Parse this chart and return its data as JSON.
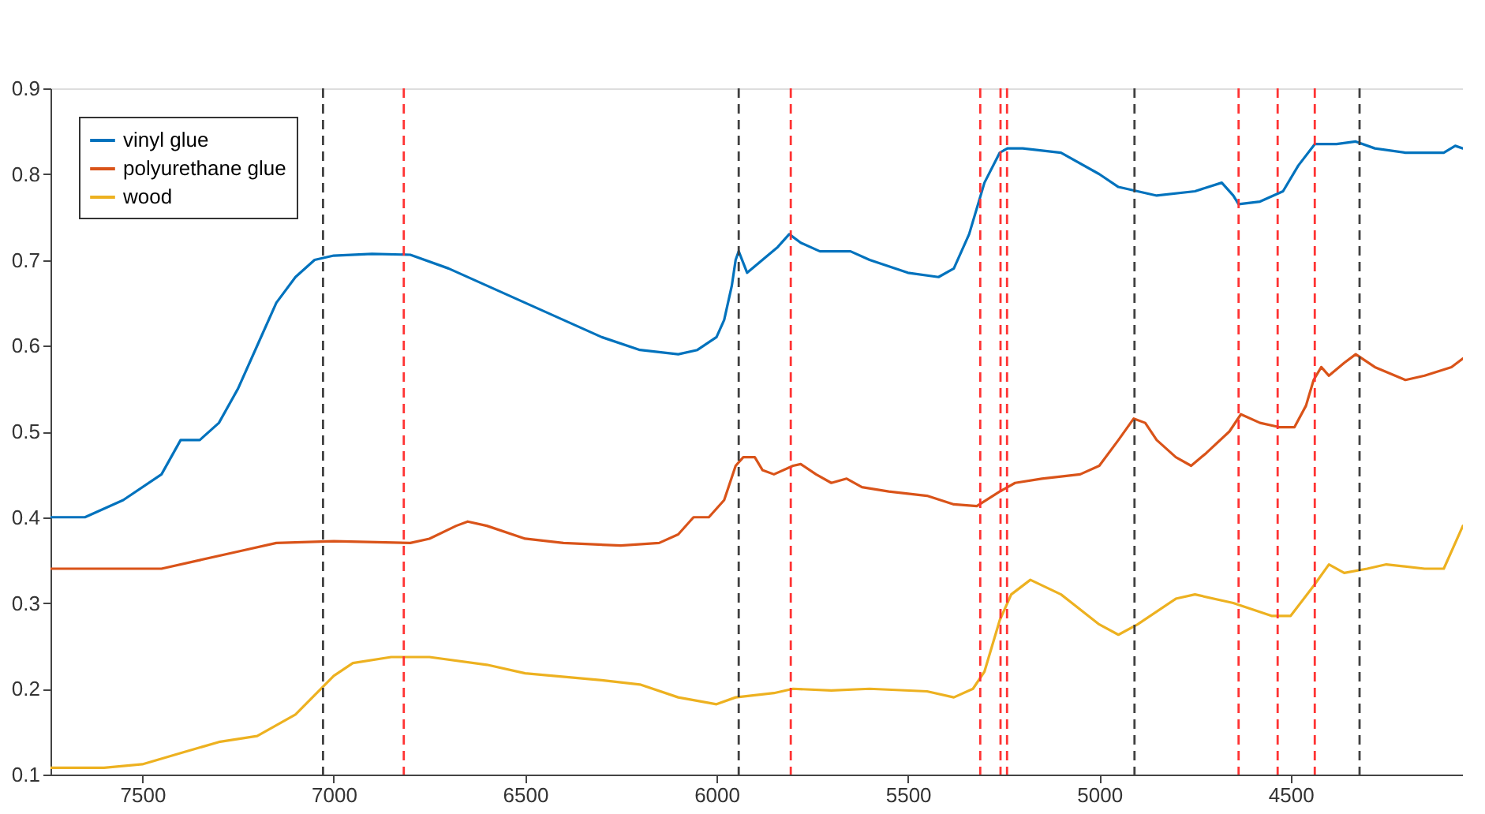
{
  "chart_data": {
    "type": "line",
    "xlim": [
      7740,
      4050
    ],
    "xticks": [
      7500,
      7000,
      6500,
      6000,
      5500,
      5000,
      4500
    ],
    "ylim": [
      0.1,
      0.9
    ],
    "yticks": [
      0.1,
      0.2,
      0.3,
      0.4,
      0.5,
      0.6,
      0.7,
      0.8,
      0.9
    ],
    "grid": false,
    "legend": "top left",
    "marker": "none",
    "line_style": "solid",
    "series": [
      {
        "name": "vinyl glue",
        "color": "#0072bd",
        "x": [
          7740,
          7650,
          7550,
          7450,
          7400,
          7350,
          7300,
          7250,
          7200,
          7150,
          7100,
          7050,
          7000,
          6900,
          6800,
          6700,
          6600,
          6500,
          6400,
          6300,
          6200,
          6100,
          6050,
          6000,
          5980,
          5960,
          5950,
          5942,
          5920,
          5880,
          5840,
          5810,
          5780,
          5730,
          5650,
          5600,
          5500,
          5420,
          5380,
          5340,
          5300,
          5260,
          5240,
          5200,
          5100,
          5000,
          4950,
          4900,
          4850,
          4750,
          4680,
          4650,
          4636,
          4580,
          4520,
          4480,
          4437,
          4380,
          4330,
          4280,
          4200,
          4100,
          4070,
          4050
        ],
        "values": [
          0.4,
          0.4,
          0.42,
          0.45,
          0.49,
          0.49,
          0.51,
          0.55,
          0.6,
          0.65,
          0.68,
          0.7,
          0.705,
          0.707,
          0.706,
          0.69,
          0.67,
          0.65,
          0.63,
          0.61,
          0.595,
          0.59,
          0.595,
          0.61,
          0.63,
          0.67,
          0.7,
          0.71,
          0.685,
          0.7,
          0.715,
          0.73,
          0.72,
          0.71,
          0.71,
          0.7,
          0.685,
          0.68,
          0.69,
          0.73,
          0.79,
          0.825,
          0.83,
          0.83,
          0.825,
          0.8,
          0.785,
          0.78,
          0.775,
          0.78,
          0.79,
          0.775,
          0.765,
          0.768,
          0.78,
          0.81,
          0.835,
          0.835,
          0.838,
          0.83,
          0.825,
          0.825,
          0.833,
          0.83
        ]
      },
      {
        "name": "polyurethane glue",
        "color": "#d95319",
        "x": [
          7740,
          7550,
          7450,
          7350,
          7250,
          7150,
          7000,
          6800,
          6750,
          6680,
          6650,
          6600,
          6500,
          6400,
          6250,
          6150,
          6100,
          6060,
          6020,
          5980,
          5950,
          5930,
          5900,
          5880,
          5850,
          5800,
          5780,
          5740,
          5700,
          5660,
          5620,
          5550,
          5450,
          5380,
          5320,
          5260,
          5220,
          5150,
          5050,
          5000,
          4950,
          4910,
          4880,
          4850,
          4800,
          4760,
          4720,
          4660,
          4630,
          4580,
          4530,
          4490,
          4460,
          4440,
          4420,
          4400,
          4360,
          4330,
          4280,
          4200,
          4150,
          4080,
          4050
        ],
        "values": [
          0.34,
          0.34,
          0.34,
          0.35,
          0.36,
          0.37,
          0.372,
          0.37,
          0.375,
          0.39,
          0.395,
          0.39,
          0.375,
          0.37,
          0.367,
          0.37,
          0.38,
          0.4,
          0.4,
          0.42,
          0.46,
          0.47,
          0.47,
          0.455,
          0.45,
          0.46,
          0.462,
          0.45,
          0.44,
          0.445,
          0.435,
          0.43,
          0.425,
          0.415,
          0.413,
          0.43,
          0.44,
          0.445,
          0.45,
          0.46,
          0.49,
          0.515,
          0.51,
          0.49,
          0.47,
          0.46,
          0.475,
          0.5,
          0.52,
          0.51,
          0.505,
          0.505,
          0.53,
          0.56,
          0.575,
          0.565,
          0.58,
          0.59,
          0.575,
          0.56,
          0.565,
          0.575,
          0.585
        ]
      },
      {
        "name": "wood",
        "color": "#edb120",
        "x": [
          7740,
          7600,
          7500,
          7400,
          7300,
          7200,
          7100,
          7000,
          6950,
          6850,
          6750,
          6600,
          6500,
          6300,
          6200,
          6100,
          6000,
          5950,
          5850,
          5800,
          5700,
          5600,
          5450,
          5380,
          5330,
          5300,
          5260,
          5230,
          5180,
          5100,
          5000,
          4950,
          4900,
          4800,
          4750,
          4650,
          4550,
          4500,
          4440,
          4400,
          4360,
          4300,
          4250,
          4150,
          4100,
          4050
        ],
        "values": [
          0.108,
          0.108,
          0.112,
          0.125,
          0.138,
          0.145,
          0.17,
          0.215,
          0.23,
          0.237,
          0.237,
          0.228,
          0.218,
          0.21,
          0.205,
          0.19,
          0.182,
          0.19,
          0.195,
          0.2,
          0.198,
          0.2,
          0.197,
          0.19,
          0.2,
          0.22,
          0.28,
          0.31,
          0.327,
          0.31,
          0.275,
          0.263,
          0.275,
          0.305,
          0.31,
          0.3,
          0.285,
          0.285,
          0.32,
          0.345,
          0.335,
          0.34,
          0.345,
          0.34,
          0.34,
          0.39
        ]
      }
    ],
    "ref_lines": [
      {
        "axis": "x",
        "value": 7028,
        "color": "#404040",
        "line_style": "dashed"
      },
      {
        "axis": "x",
        "value": 6817,
        "color": "#ff3333",
        "line_style": "dashed"
      },
      {
        "axis": "x",
        "value": 5942,
        "color": "#404040",
        "line_style": "dashed"
      },
      {
        "axis": "x",
        "value": 5806,
        "color": "#ff3333",
        "line_style": "dashed"
      },
      {
        "axis": "x",
        "value": 5311,
        "color": "#ff3333",
        "line_style": "dashed"
      },
      {
        "axis": "x",
        "value": 5258,
        "color": "#ff3333",
        "line_style": "dashed"
      },
      {
        "axis": "x",
        "value": 5241,
        "color": "#ff3333",
        "line_style": "dashed"
      },
      {
        "axis": "x",
        "value": 4908,
        "color": "#404040",
        "line_style": "dashed"
      },
      {
        "axis": "x",
        "value": 4636,
        "color": "#ff3333",
        "line_style": "dashed"
      },
      {
        "axis": "x",
        "value": 4534,
        "color": "#ff3333",
        "line_style": "dashed"
      },
      {
        "axis": "x",
        "value": 4437,
        "color": "#ff3333",
        "line_style": "dashed"
      },
      {
        "axis": "x",
        "value": 4320,
        "color": "#404040",
        "line_style": "dashed"
      }
    ]
  }
}
